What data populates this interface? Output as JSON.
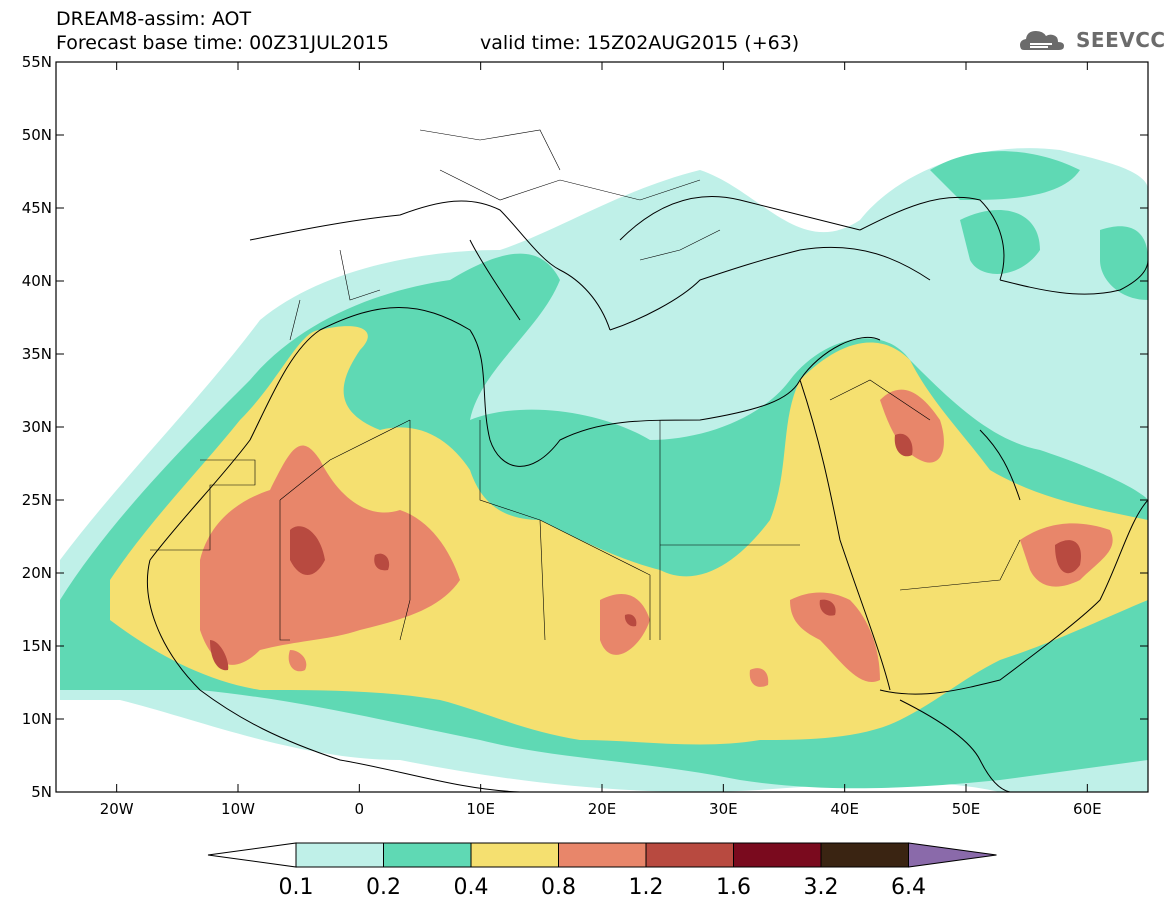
{
  "header": {
    "line1": "DREAM8-assim: AOT",
    "line2": "Forecast base time: 00Z31JUL2015",
    "line3": "valid time: 15Z02AUG2015 (+63)"
  },
  "logo": {
    "text": "SEEVCCC",
    "icon": "cloud-icon"
  },
  "map": {
    "lon_range": [
      -25,
      65
    ],
    "lat_range": [
      5,
      55
    ],
    "lat_labels": [
      "55N",
      "50N",
      "45N",
      "40N",
      "35N",
      "30N",
      "25N",
      "20N",
      "15N",
      "10N",
      "5N"
    ],
    "lon_labels": [
      "20W",
      "10W",
      "0",
      "10E",
      "20E",
      "30E",
      "40E",
      "50E",
      "60E"
    ]
  },
  "legend": {
    "colors": [
      "#bff0e8",
      "#5fd9b4",
      "#f5e070",
      "#e8866a",
      "#b84a40",
      "#7a0a1e",
      "#3a2412",
      "#8a6aaa"
    ],
    "labels": [
      "0.1",
      "0.2",
      "0.4",
      "0.8",
      "1.2",
      "1.6",
      "3.2",
      "6.4"
    ]
  }
}
